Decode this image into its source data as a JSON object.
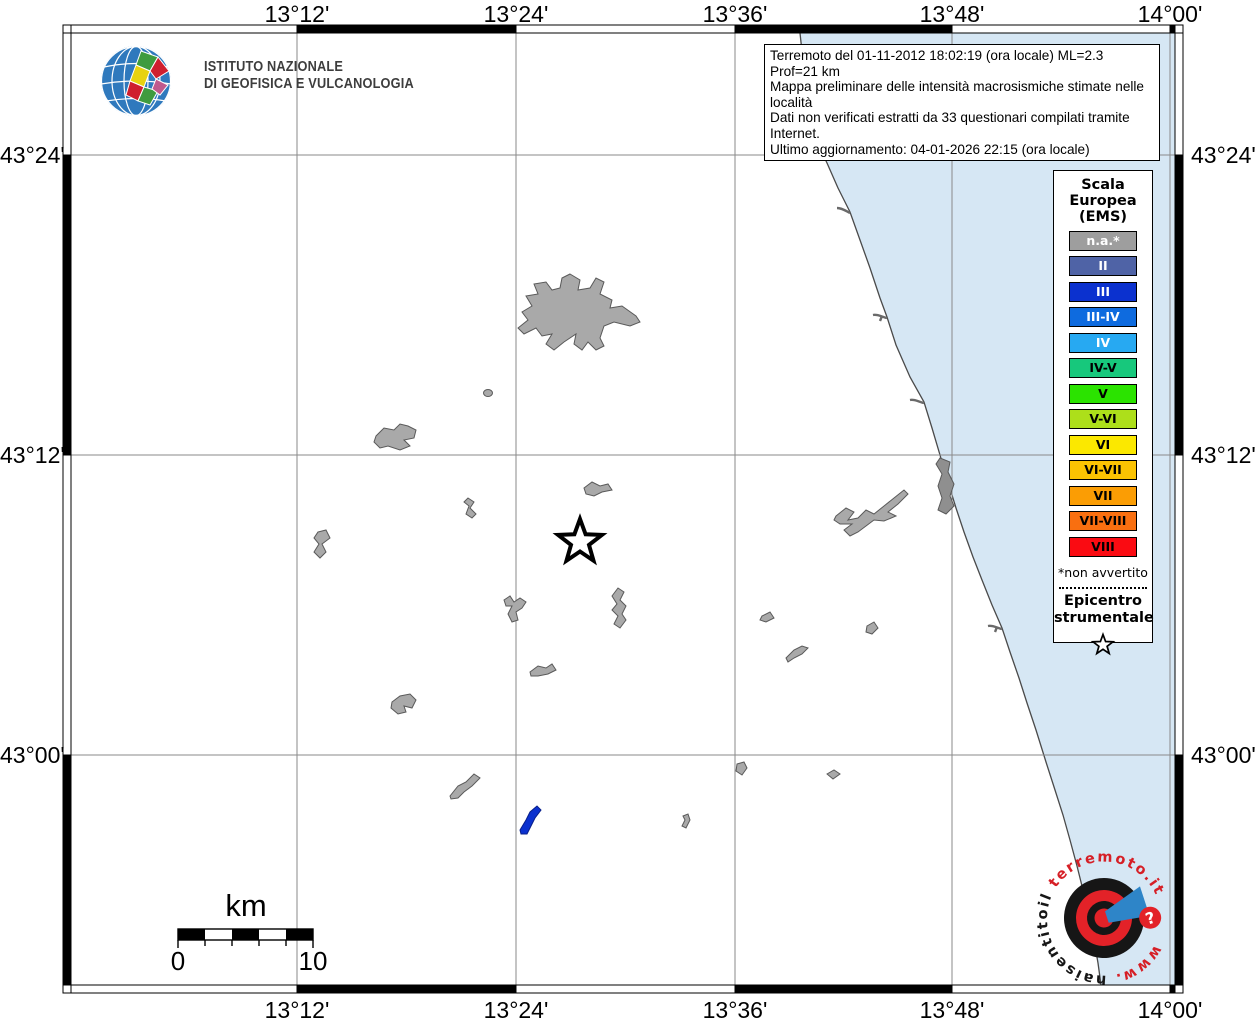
{
  "info_box": {
    "lines": [
      "Terremoto del 01-11-2012 18:02:19 (ora locale) ML=2.3 Prof=21 km",
      "Mappa preliminare delle intensità macrosismiche stimate nelle località",
      "Dati non verificati estratti da 33 questionari compilati tramite Internet.",
      "Ultimo aggiornamento: 04-01-2026 22:15 (ora locale)"
    ]
  },
  "ingv_logo": {
    "line1": "ISTITUTO NAZIONALE",
    "line2": "DI GEOFISICA E VULCANOLOGIA"
  },
  "axes": {
    "x_tick_labels": [
      "13°12'",
      "13°24'",
      "13°36'",
      "13°48'",
      "14°00'"
    ],
    "y_tick_labels": [
      "43°24'",
      "43°12'",
      "43°00'"
    ]
  },
  "legend": {
    "title_lines": [
      "Scala",
      "Europea",
      "(EMS)"
    ],
    "items": [
      {
        "label": "n.a.*",
        "color": "#9e9e9e",
        "text_color": "#ffffff"
      },
      {
        "label": "II",
        "color": "#4f63a6",
        "text_color": "#ffffff"
      },
      {
        "label": "III",
        "color": "#0b31cf",
        "text_color": "#ffffff"
      },
      {
        "label": "III-IV",
        "color": "#0e6bdf",
        "text_color": "#ffffff"
      },
      {
        "label": "IV",
        "color": "#27a9f2",
        "text_color": "#ffffff"
      },
      {
        "label": "IV-V",
        "color": "#17c87c",
        "text_color": "#000000"
      },
      {
        "label": "V",
        "color": "#2be300",
        "text_color": "#000000"
      },
      {
        "label": "V-VI",
        "color": "#addf1a",
        "text_color": "#000000"
      },
      {
        "label": "VI",
        "color": "#fbe800",
        "text_color": "#000000"
      },
      {
        "label": "VI-VII",
        "color": "#fbc302",
        "text_color": "#000000"
      },
      {
        "label": "VII",
        "color": "#fb9d04",
        "text_color": "#000000"
      },
      {
        "label": "VII-VIII",
        "color": "#f96f10",
        "text_color": "#000000"
      },
      {
        "label": "VIII",
        "color": "#fa0b12",
        "text_color": "#000000"
      }
    ],
    "footnote": "*non avvertito",
    "epicenter_label_lines": [
      "Epicentro",
      "strumentale"
    ]
  },
  "scale_bar": {
    "unit": "km",
    "start": "0",
    "end": "10"
  },
  "site_logo": {
    "text_prefix": "www.",
    "text_black": "haisentitoil",
    "text_red": "terremoto.it",
    "question_mark": "?"
  },
  "map": {
    "epicenter_symbol": "star",
    "sea_color": "#d6e7f4",
    "locality_color_na": "#a9a9a9",
    "locality_color_intensity_iii": "#0b31cf"
  }
}
